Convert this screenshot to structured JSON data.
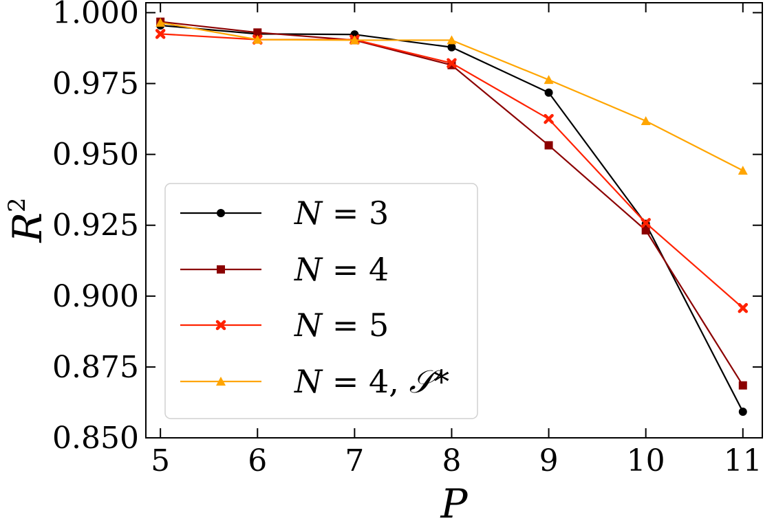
{
  "chart_data": {
    "type": "line",
    "xlabel": "P",
    "ylabel": "R",
    "ylabel_sup": "2",
    "xlim": [
      4.85,
      11.2
    ],
    "ylim": [
      0.85,
      1.0035
    ],
    "x_ticks": [
      5,
      6,
      7,
      8,
      9,
      10,
      11
    ],
    "x_tick_labels": [
      "5",
      "6",
      "7",
      "8",
      "9",
      "10",
      "11"
    ],
    "y_ticks": [
      0.85,
      0.875,
      0.9,
      0.925,
      0.95,
      0.975,
      1.0
    ],
    "y_tick_labels": [
      "0.850",
      "0.875",
      "0.900",
      "0.925",
      "0.950",
      "0.975",
      "1.000"
    ],
    "grid": false,
    "legend_position": "lower-left",
    "x": [
      5,
      6,
      7,
      8,
      9,
      10,
      11
    ],
    "series": [
      {
        "var": "N",
        "eq": " = 3",
        "suffix": "",
        "color": "#000000",
        "marker": "circle",
        "values": [
          0.9955,
          0.9925,
          0.9923,
          0.9878,
          0.9718,
          0.9255,
          0.8592
        ]
      },
      {
        "var": "N",
        "eq": " = 4",
        "suffix": "",
        "color": "#8b0000",
        "marker": "square",
        "values": [
          0.9968,
          0.993,
          0.9903,
          0.9815,
          0.9532,
          0.9232,
          0.8685
        ]
      },
      {
        "var": "N",
        "eq": " = 5",
        "suffix": "",
        "color": "#ff2200",
        "marker": "x",
        "values": [
          0.9925,
          0.9905,
          0.9905,
          0.9822,
          0.9625,
          0.9258,
          0.8958
        ]
      },
      {
        "var": "N",
        "eq": " = 4, ",
        "suffix": "𝒮*",
        "color": "#ffa500",
        "marker": "triangle",
        "values": [
          0.9965,
          0.9905,
          0.9903,
          0.9903,
          0.9763,
          0.9618,
          0.9443
        ]
      }
    ]
  }
}
